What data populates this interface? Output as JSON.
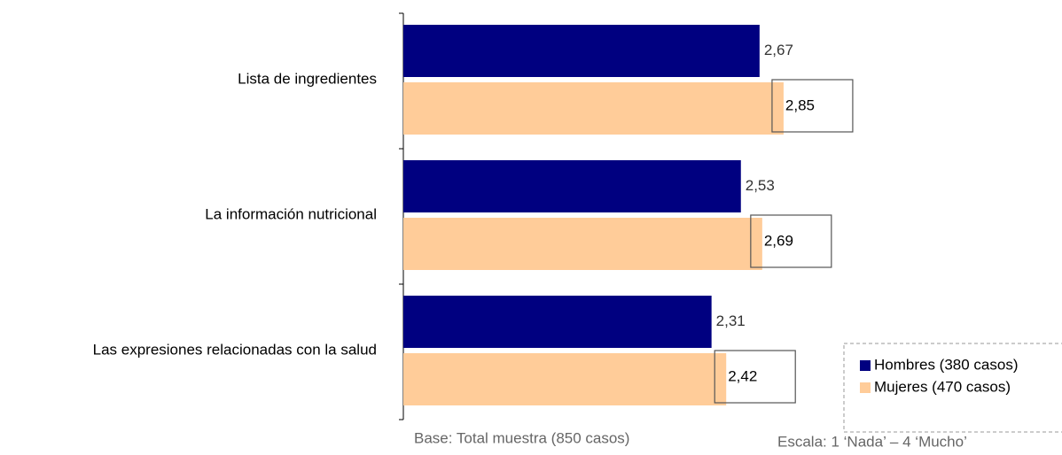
{
  "chart_data": {
    "type": "bar",
    "orientation": "horizontal",
    "categories": [
      "Lista de ingredientes",
      "La información nutricional",
      "Las expresiones relacionadas con la salud"
    ],
    "series": [
      {
        "name": "Hombres (380 casos)",
        "color": "#000080",
        "values": [
          2.67,
          2.53,
          2.31
        ],
        "value_labels": [
          "2,67",
          "2,53",
          "2,31"
        ]
      },
      {
        "name": "Mujeres (470 casos)",
        "color": "#ffcc99",
        "values": [
          2.85,
          2.69,
          2.42
        ],
        "value_labels": [
          "2,85",
          "2,69",
          "2,42"
        ]
      }
    ],
    "xlim": [
      0,
      4
    ],
    "annotations": [
      "Base: Total muestra (850 casos)",
      "Escala: 1 ‘Nada’ – 4 ‘Mucho’"
    ]
  }
}
